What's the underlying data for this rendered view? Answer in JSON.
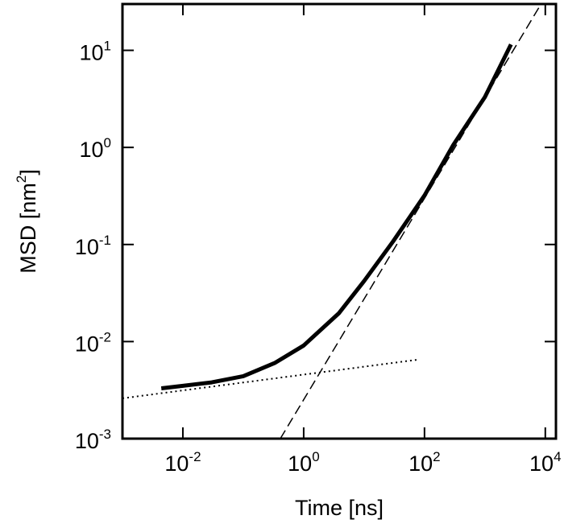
{
  "chart_data": {
    "type": "line",
    "log_x": true,
    "log_y": true,
    "xlabel": "Time [ns]",
    "ylabel": {
      "text": "MSD [nm",
      "superscript": "2",
      "suffix": "]"
    },
    "xlim": [
      0.001,
      15000
    ],
    "ylim": [
      0.001,
      30
    ],
    "xticks": [
      {
        "value": 0.01,
        "label": "10",
        "exponent": "-2"
      },
      {
        "value": 1,
        "label": "10",
        "exponent": "0"
      },
      {
        "value": 100,
        "label": "10",
        "exponent": "2"
      },
      {
        "value": 10000,
        "label": "10",
        "exponent": "4"
      }
    ],
    "yticks": [
      {
        "value": 0.001,
        "label": "10",
        "exponent": "-3"
      },
      {
        "value": 0.01,
        "label": "10",
        "exponent": "-2"
      },
      {
        "value": 0.1,
        "label": "10",
        "exponent": "-1"
      },
      {
        "value": 1,
        "label": "10",
        "exponent": "0"
      },
      {
        "value": 10,
        "label": "10",
        "exponent": "1"
      }
    ],
    "series": [
      {
        "color": "#000000",
        "style": "solid",
        "width": 5,
        "x": [
          0.0044,
          0.01,
          0.03,
          0.1,
          0.33,
          1,
          3.8,
          10,
          30,
          100,
          300,
          1000,
          2700
        ],
        "values": [
          0.0033,
          0.0035,
          0.0038,
          0.0044,
          0.006,
          0.0091,
          0.0195,
          0.042,
          0.107,
          0.32,
          1.06,
          3.3,
          11.5
        ]
      },
      {
        "color": "#000000",
        "style": "dotted",
        "width": 2,
        "x": [
          0.001,
          75
        ],
        "values": [
          0.0026,
          0.0065
        ]
      },
      {
        "color": "#000000",
        "style": "dashed",
        "width": 1.5,
        "x": [
          0.41,
          8500
        ],
        "values": [
          0.001,
          30
        ]
      }
    ]
  }
}
